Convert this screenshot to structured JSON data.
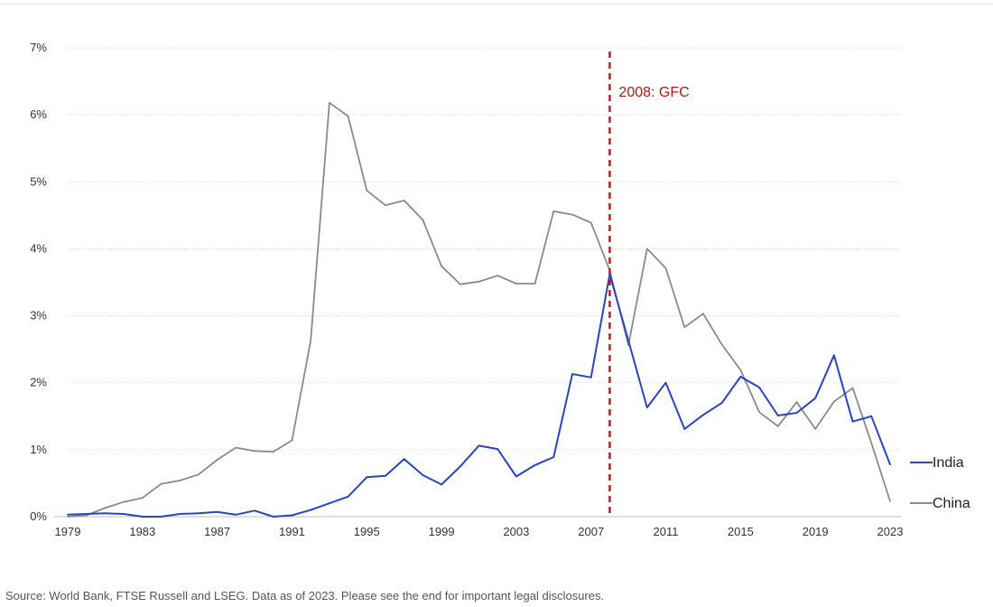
{
  "chart_data": {
    "type": "line",
    "title": "",
    "xlabel": "",
    "ylabel": "",
    "x": [
      1979,
      1980,
      1981,
      1982,
      1983,
      1984,
      1985,
      1986,
      1987,
      1988,
      1989,
      1990,
      1991,
      1992,
      1993,
      1994,
      1995,
      1996,
      1997,
      1998,
      1999,
      2000,
      2001,
      2002,
      2003,
      2004,
      2005,
      2006,
      2007,
      2008,
      2009,
      2010,
      2011,
      2012,
      2013,
      2014,
      2015,
      2016,
      2017,
      2018,
      2019,
      2020,
      2021,
      2022,
      2023
    ],
    "xticks": [
      1979,
      1983,
      1987,
      1991,
      1995,
      1999,
      2003,
      2007,
      2011,
      2015,
      2019,
      2023
    ],
    "xlim": [
      1979,
      2023
    ],
    "ylim": [
      0,
      7
    ],
    "yticks": [
      0,
      1,
      2,
      3,
      4,
      5,
      6,
      7
    ],
    "ytick_labels": [
      "0%",
      "1%",
      "2%",
      "3%",
      "4%",
      "5%",
      "6%",
      "7%"
    ],
    "grid": true,
    "legend_position": "right",
    "series": [
      {
        "name": "India",
        "color": "#2a44c4",
        "values": [
          0.03,
          0.04,
          0.05,
          0.04,
          0.0,
          0.0,
          0.04,
          0.05,
          0.07,
          0.03,
          0.09,
          0.0,
          0.02,
          0.1,
          0.2,
          0.3,
          0.59,
          0.61,
          0.86,
          0.62,
          0.48,
          0.75,
          1.06,
          1.01,
          0.6,
          0.77,
          0.89,
          2.13,
          2.08,
          3.62,
          2.63,
          1.63,
          2.0,
          1.31,
          1.52,
          1.7,
          2.09,
          1.93,
          1.51,
          1.55,
          1.77,
          2.41,
          1.42,
          1.5,
          0.78
        ]
      },
      {
        "name": "China",
        "color": "#8a8a8a",
        "values": [
          0.0,
          0.02,
          0.13,
          0.22,
          0.28,
          0.49,
          0.54,
          0.63,
          0.85,
          1.03,
          0.98,
          0.97,
          1.14,
          2.63,
          6.18,
          5.98,
          4.87,
          4.65,
          4.72,
          4.43,
          3.74,
          3.47,
          3.51,
          3.6,
          3.48,
          3.48,
          4.56,
          4.51,
          4.39,
          3.68,
          2.56,
          4.0,
          3.71,
          2.83,
          3.03,
          2.57,
          2.19,
          1.56,
          1.35,
          1.71,
          1.31,
          1.72,
          1.92,
          1.1,
          0.23
        ]
      }
    ],
    "annotations": [
      {
        "x": 2008,
        "label": "2008: GFC",
        "color": "#b01a1a",
        "style": "dashed"
      }
    ]
  },
  "source": "Source: World Bank, FTSE Russell and LSEG. Data as of 2023. Please see the end for important legal disclosures."
}
